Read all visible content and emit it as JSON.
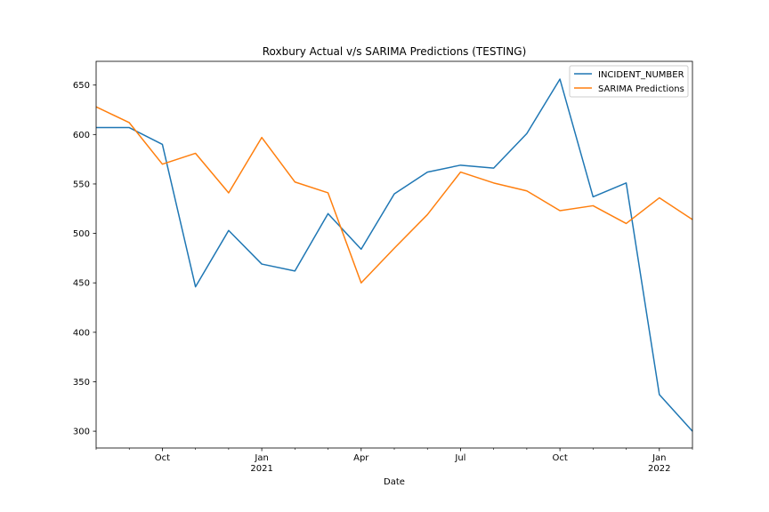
{
  "chart_data": {
    "type": "line",
    "title": "Roxbury Actual v/s SARIMA Predictions (TESTING)",
    "xlabel": "Date",
    "ylabel": "",
    "x": [
      "2020-08",
      "2020-09",
      "2020-10",
      "2020-11",
      "2020-12",
      "2021-01",
      "2021-02",
      "2021-03",
      "2021-04",
      "2021-05",
      "2021-06",
      "2021-07",
      "2021-08",
      "2021-09",
      "2021-10",
      "2021-11",
      "2021-12",
      "2022-01",
      "2022-02"
    ],
    "xlim": [
      "2020-08",
      "2022-02"
    ],
    "ylim": [
      283,
      674
    ],
    "yticks": [
      300,
      350,
      400,
      450,
      500,
      550,
      600,
      650
    ],
    "xticks": [
      {
        "x": "2020-10",
        "label": "Oct",
        "sublabel": ""
      },
      {
        "x": "2021-01",
        "label": "Jan",
        "sublabel": "2021"
      },
      {
        "x": "2021-04",
        "label": "Apr",
        "sublabel": ""
      },
      {
        "x": "2021-07",
        "label": "Jul",
        "sublabel": ""
      },
      {
        "x": "2021-10",
        "label": "Oct",
        "sublabel": ""
      },
      {
        "x": "2022-01",
        "label": "Jan",
        "sublabel": "2022"
      }
    ],
    "grid": false,
    "legend_position": "top-right",
    "series": [
      {
        "name": "INCIDENT_NUMBER",
        "color": "#1f77b4",
        "values": [
          607,
          607,
          590,
          446,
          503,
          469,
          462,
          520,
          484,
          540,
          562,
          569,
          566,
          601,
          656,
          537,
          551,
          337,
          300
        ]
      },
      {
        "name": "SARIMA Predictions",
        "color": "#ff7f0e",
        "values": [
          628,
          612,
          570,
          581,
          541,
          597,
          552,
          541,
          450,
          485,
          519,
          562,
          551,
          543,
          523,
          528,
          510,
          536,
          514
        ]
      }
    ]
  }
}
